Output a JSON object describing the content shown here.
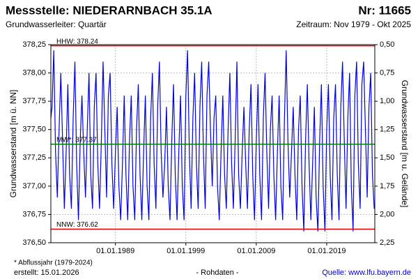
{
  "chart_data": {
    "type": "line",
    "title": "Messstelle: NIEDERARNBACH 35.1A",
    "station_number": "Nr: 11665",
    "subtitle": "Grundwasserleiter: Quartär",
    "period": "Zeitraum: Nov 1979 - Okt 2025",
    "ylabel": "Grundwasserstand [m ü. NN]",
    "y2label": "Grundwasserstand [m u. Gelände]",
    "footnote": "* Abflussjahr (1979-2024)",
    "created": "erstellt:  15.01.2026",
    "note": "- Rohdaten -",
    "source": "Quelle: www.lfu.bayern.de",
    "color": "#0000dd",
    "grid": true,
    "xlim": [
      "1979-11-01",
      "2025-10-31"
    ],
    "xticks": [
      {
        "value": "1989-01-01",
        "label": "01.01.1989"
      },
      {
        "value": "1999-01-01",
        "label": "01.01.1999"
      },
      {
        "value": "2009-01-01",
        "label": "01.01.2009"
      },
      {
        "value": "2019-01-01",
        "label": "01.01.2019"
      }
    ],
    "ylim": [
      376.5,
      378.25
    ],
    "yticks": [
      {
        "value": 376.5,
        "label": "376,50"
      },
      {
        "value": 376.75,
        "label": "376,75"
      },
      {
        "value": 377,
        "label": "377,00"
      },
      {
        "value": 377.25,
        "label": "377,25"
      },
      {
        "value": 377.5,
        "label": "377,50"
      },
      {
        "value": 377.75,
        "label": "377,75"
      },
      {
        "value": 378,
        "label": "378,00"
      },
      {
        "value": 378.25,
        "label": "378,25"
      }
    ],
    "y2lim": [
      2.25,
      0.5
    ],
    "y2ticks": [
      {
        "value": 0.5,
        "label": "0,50"
      },
      {
        "value": 0.75,
        "label": "0,75"
      },
      {
        "value": 1,
        "label": "1,00"
      },
      {
        "value": 1.25,
        "label": "1,25"
      },
      {
        "value": 1.5,
        "label": "1,50"
      },
      {
        "value": 1.75,
        "label": "1,75"
      },
      {
        "value": 2,
        "label": "2,00"
      },
      {
        "value": 2.25,
        "label": "2,25"
      }
    ],
    "reference_lines": [
      {
        "value": 378.24,
        "label": "HHW: 378.24",
        "color": "#e00000"
      },
      {
        "value": 377.37,
        "label": "MW*: 377.37",
        "color": "#008000"
      },
      {
        "value": 376.62,
        "label": "NNW: 376.62",
        "color": "#e00000"
      }
    ],
    "x": [
      "1979-11-01",
      "1980-01-01",
      "1980-04-01",
      "1980-07-01",
      "1980-10-01",
      "1981-01-01",
      "1981-04-01",
      "1981-07-01",
      "1981-10-01",
      "1982-01-01",
      "1982-04-01",
      "1982-07-01",
      "1982-10-01",
      "1983-01-01",
      "1983-04-01",
      "1983-07-01",
      "1983-10-01",
      "1984-01-01",
      "1984-04-01",
      "1984-07-01",
      "1984-10-01",
      "1985-01-01",
      "1985-04-01",
      "1985-07-01",
      "1985-10-01",
      "1986-01-01",
      "1986-04-01",
      "1986-07-01",
      "1986-10-01",
      "1987-01-01",
      "1987-04-01",
      "1987-07-01",
      "1987-10-01",
      "1988-01-01",
      "1988-04-01",
      "1988-07-01",
      "1988-10-01",
      "1989-01-01",
      "1989-04-01",
      "1989-07-01",
      "1989-10-01",
      "1990-01-01",
      "1990-04-01",
      "1990-07-01",
      "1990-10-01",
      "1991-01-01",
      "1991-04-01",
      "1991-07-01",
      "1991-10-01",
      "1992-01-01",
      "1992-04-01",
      "1992-07-01",
      "1992-10-01",
      "1993-01-01",
      "1993-04-01",
      "1993-07-01",
      "1993-10-01",
      "1994-01-01",
      "1994-04-01",
      "1994-07-01",
      "1994-10-01",
      "1995-01-01",
      "1995-04-01",
      "1995-07-01",
      "1995-10-01",
      "1996-01-01",
      "1996-04-01",
      "1996-07-01",
      "1996-10-01",
      "1997-01-01",
      "1997-04-01",
      "1997-07-01",
      "1997-10-01",
      "1998-01-01",
      "1998-04-01",
      "1998-07-01",
      "1998-10-01",
      "1999-01-01",
      "1999-04-01",
      "1999-07-01",
      "1999-10-01",
      "2000-01-01",
      "2000-04-01",
      "2000-07-01",
      "2000-10-01",
      "2001-01-01",
      "2001-04-01",
      "2001-07-01",
      "2001-10-01",
      "2002-01-01",
      "2002-04-01",
      "2002-07-01",
      "2002-10-01",
      "2003-01-01",
      "2003-04-01",
      "2003-07-01",
      "2003-10-01",
      "2004-01-01",
      "2004-04-01",
      "2004-07-01",
      "2004-10-01",
      "2005-01-01",
      "2005-04-01",
      "2005-07-01",
      "2005-10-01",
      "2006-01-01",
      "2006-04-01",
      "2006-07-01",
      "2006-10-01",
      "2007-01-01",
      "2007-04-01",
      "2007-07-01",
      "2007-10-01",
      "2008-01-01",
      "2008-04-01",
      "2008-07-01",
      "2008-10-01",
      "2009-01-01",
      "2009-04-01",
      "2009-07-01",
      "2009-10-01",
      "2010-01-01",
      "2010-04-01",
      "2010-07-01",
      "2010-10-01",
      "2011-01-01",
      "2011-04-01",
      "2011-07-01",
      "2011-10-01",
      "2012-01-01",
      "2012-04-01",
      "2012-07-01",
      "2012-10-01",
      "2013-01-01",
      "2013-04-01",
      "2013-07-01",
      "2013-10-01",
      "2014-01-01",
      "2014-04-01",
      "2014-07-01",
      "2014-10-01",
      "2015-01-01",
      "2015-04-01",
      "2015-07-01",
      "2015-10-01",
      "2016-01-01",
      "2016-04-01",
      "2016-07-01",
      "2016-10-01",
      "2017-01-01",
      "2017-04-01",
      "2017-07-01",
      "2017-10-01",
      "2018-01-01",
      "2018-04-01",
      "2018-07-01",
      "2018-10-01",
      "2019-01-01",
      "2019-04-01",
      "2019-07-01",
      "2019-10-01",
      "2020-01-01",
      "2020-04-01",
      "2020-07-01",
      "2020-10-01",
      "2021-01-01",
      "2021-04-01",
      "2021-07-01",
      "2021-10-01",
      "2022-01-01",
      "2022-04-01",
      "2022-07-01",
      "2022-10-01",
      "2023-01-01",
      "2023-04-01",
      "2023-07-01",
      "2023-10-01",
      "2024-01-01",
      "2024-04-01",
      "2024-07-01",
      "2024-10-01",
      "2025-01-01",
      "2025-04-01",
      "2025-07-01",
      "2025-10-01"
    ],
    "values": [
      377.6,
      377.7,
      378.2,
      377.3,
      376.9,
      377.5,
      378.0,
      377.4,
      376.8,
      377.3,
      377.9,
      377.1,
      376.8,
      377.6,
      378.1,
      377.2,
      376.7,
      377.4,
      377.8,
      377.3,
      376.9,
      377.5,
      378.0,
      377.1,
      376.8,
      377.7,
      378.0,
      377.2,
      376.8,
      377.4,
      378.1,
      377.5,
      376.9,
      377.8,
      378.0,
      377.2,
      376.8,
      377.3,
      377.7,
      377.0,
      376.7,
      377.2,
      377.8,
      377.1,
      376.7,
      377.4,
      377.8,
      377.0,
      376.7,
      377.5,
      377.9,
      377.1,
      376.7,
      377.3,
      377.8,
      377.0,
      376.7,
      377.6,
      378.0,
      377.2,
      376.8,
      377.7,
      378.1,
      377.3,
      376.9,
      377.2,
      377.7,
      377.0,
      376.7,
      377.4,
      377.9,
      377.1,
      376.7,
      377.3,
      377.8,
      377.0,
      376.7,
      377.8,
      378.2,
      377.3,
      376.8,
      377.6,
      378.0,
      377.2,
      376.8,
      377.7,
      378.1,
      377.3,
      376.8,
      377.8,
      378.1,
      377.5,
      377.0,
      377.6,
      377.8,
      377.0,
      376.7,
      377.3,
      377.8,
      377.1,
      376.8,
      377.5,
      378.0,
      377.2,
      376.8,
      377.4,
      378.1,
      377.1,
      376.8,
      377.3,
      377.7,
      377.2,
      376.8,
      377.5,
      377.9,
      377.1,
      376.7,
      377.4,
      377.9,
      377.1,
      376.7,
      377.6,
      378.0,
      377.3,
      376.8,
      377.5,
      377.8,
      377.1,
      376.7,
      377.3,
      377.8,
      377.0,
      376.7,
      377.6,
      378.2,
      377.4,
      376.9,
      377.3,
      377.7,
      377.1,
      376.7,
      377.5,
      377.8,
      377.0,
      376.6,
      377.4,
      377.9,
      377.2,
      376.7,
      377.2,
      377.7,
      376.9,
      376.6,
      377.4,
      377.9,
      377.0,
      376.6,
      377.5,
      377.9,
      377.1,
      376.7,
      377.6,
      377.9,
      377.1,
      376.7,
      377.7,
      378.1,
      377.4,
      376.8,
      377.6,
      378.0,
      377.0,
      376.6,
      377.8,
      378.1,
      377.2,
      376.8,
      377.9,
      378.1,
      377.5,
      376.9,
      377.7,
      378.0,
      377.1,
      376.8
    ]
  }
}
